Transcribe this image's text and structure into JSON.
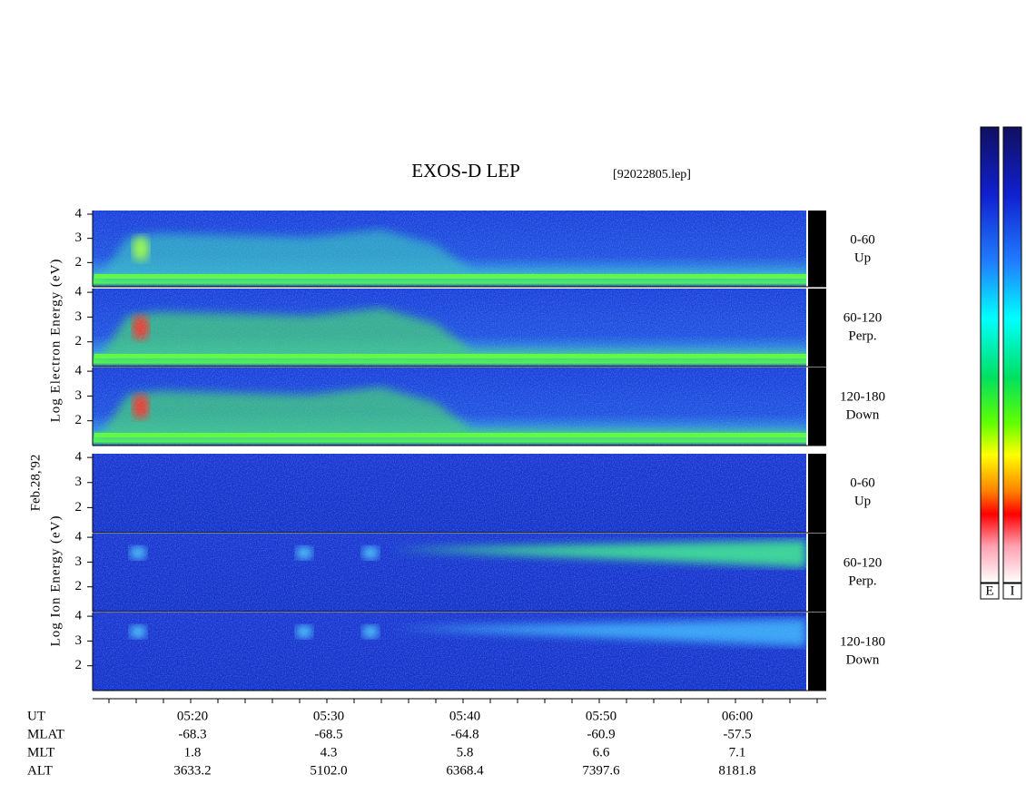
{
  "title": "EXOS-D LEP",
  "file": "[92022805.lep]",
  "date": "Feb.28,'92",
  "electron_axis_label": "Log Electron Energy (eV)",
  "ion_axis_label": "Log Ion Energy (eV)",
  "ylim": [
    1,
    4.15
  ],
  "yticks": [
    2,
    3,
    4
  ],
  "electron_panels": [
    {
      "range": "0-60",
      "dir": "Up"
    },
    {
      "range": "60-120",
      "dir": "Perp."
    },
    {
      "range": "120-180",
      "dir": "Down"
    }
  ],
  "ion_panels": [
    {
      "range": "0-60",
      "dir": "Up"
    },
    {
      "range": "60-120",
      "dir": "Perp."
    },
    {
      "range": "120-180",
      "dir": "Down"
    }
  ],
  "colorbar_labels": [
    "E",
    "I"
  ],
  "orbit": {
    "row_labels": [
      "UT",
      "MLAT",
      "MLT",
      "ALT"
    ],
    "columns": [
      [
        "05:20",
        "-68.3",
        "1.8",
        "3633.2"
      ],
      [
        "05:30",
        "-68.5",
        "4.3",
        "5102.0"
      ],
      [
        "05:40",
        "-64.8",
        "5.8",
        "6368.4"
      ],
      [
        "05:50",
        "-60.9",
        "6.6",
        "7397.6"
      ],
      [
        "06:00",
        "-57.5",
        "7.1",
        "8181.8"
      ]
    ]
  }
}
